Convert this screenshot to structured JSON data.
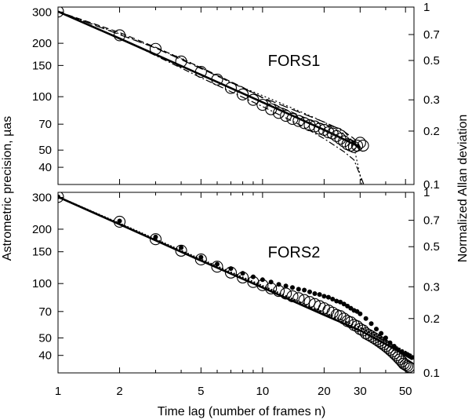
{
  "figure": {
    "xlabel": "Time lag (number of frames n)",
    "ylabel_left": "Astrometric precision, µas",
    "ylabel_right": "Normalized Allan deviation"
  },
  "chart_data": [
    {
      "type": "line",
      "title": "FORS1",
      "xscale": "log",
      "yscale": "log",
      "xlim": [
        1,
        55
      ],
      "ylim": [
        32,
        320
      ],
      "ylim_right": [
        0.1,
        1.0
      ],
      "x_ticks": [
        1,
        2,
        5,
        10,
        20,
        30,
        50
      ],
      "y_ticks": [
        40,
        50,
        70,
        100,
        150,
        200,
        300
      ],
      "y_ticks_right": [
        0.1,
        0.2,
        0.3,
        0.5,
        0.7,
        1
      ],
      "y_tick_labels_right": [
        "0.1",
        "0.2",
        "0.3",
        "0.5",
        "0.7",
        "1"
      ],
      "series": [
        {
          "style": "open-circles",
          "x": [
            1,
            2,
            3,
            4,
            5,
            6,
            7,
            8,
            9,
            10,
            11,
            12,
            13,
            14,
            15,
            16,
            17,
            18,
            19,
            20,
            21,
            22,
            23,
            24,
            25,
            26,
            27,
            28,
            29,
            30,
            31
          ],
          "values": [
            302,
            222,
            186,
            158,
            138,
            125,
            112,
            103,
            96,
            90,
            85,
            81,
            78,
            75,
            73,
            71,
            69,
            68,
            66,
            65,
            63,
            62,
            60,
            58,
            56,
            54,
            53,
            52,
            53,
            55,
            53
          ]
        },
        {
          "style": "solid-thick",
          "x": [
            1,
            2,
            5,
            10,
            20,
            30
          ],
          "values": [
            302,
            213,
            133,
            93,
            65,
            52
          ]
        },
        {
          "style": "dashed",
          "x": [
            1,
            2,
            3,
            5,
            8,
            12,
            18,
            24,
            28,
            31
          ],
          "values": [
            302,
            230,
            190,
            146,
            113,
            88,
            72,
            66,
            58,
            49
          ]
        },
        {
          "style": "dotted",
          "x": [
            1,
            2,
            4,
            7,
            12,
            18,
            24,
            28,
            31
          ],
          "values": [
            302,
            226,
            165,
            120,
            93,
            76,
            65,
            52,
            30
          ]
        },
        {
          "style": "dash-dot",
          "x": [
            1,
            2,
            5,
            10,
            15,
            20,
            25,
            28,
            32
          ],
          "values": [
            302,
            214,
            128,
            88,
            70,
            58,
            49,
            44,
            30
          ]
        },
        {
          "style": "long-dash",
          "x": [
            1,
            3,
            6,
            10,
            15,
            20,
            25,
            30
          ],
          "values": [
            302,
            188,
            131,
            99,
            82,
            72,
            64,
            50
          ]
        }
      ]
    },
    {
      "type": "line",
      "title": "FORS2",
      "xscale": "log",
      "yscale": "log",
      "xlim": [
        1,
        55
      ],
      "ylim": [
        32,
        320
      ],
      "ylim_right": [
        0.1,
        1.0
      ],
      "x_ticks": [
        1,
        2,
        5,
        10,
        20,
        30,
        50
      ],
      "x_tick_labels": [
        "1",
        "2",
        "5",
        "10",
        "20",
        "30",
        "50"
      ],
      "y_ticks": [
        40,
        50,
        70,
        100,
        150,
        200,
        300
      ],
      "y_tick_labels": [
        "40",
        "50",
        "70",
        "100",
        "150",
        "200",
        "300"
      ],
      "y_ticks_right": [
        0.1,
        0.2,
        0.3,
        0.5,
        0.7,
        1
      ],
      "y_tick_labels_right": [
        "0.1",
        "0.2",
        "0.3",
        "0.5",
        "0.7",
        "1"
      ],
      "series": [
        {
          "style": "open-circles",
          "x": [
            1,
            2,
            3,
            4,
            5,
            6,
            7,
            8,
            9,
            10,
            11,
            12,
            13,
            14,
            15,
            16,
            17,
            18,
            19,
            20,
            21,
            22,
            23,
            24,
            25,
            26,
            27,
            28,
            29,
            30,
            31,
            32,
            33,
            34,
            35,
            36,
            37,
            38,
            39,
            40,
            41,
            42,
            43,
            44,
            45,
            46,
            47,
            48,
            49,
            50,
            51,
            52,
            53
          ],
          "values": [
            302,
            220,
            176,
            152,
            136,
            124,
            115,
            108,
            102,
            98,
            94,
            91,
            88,
            85,
            83,
            81,
            79,
            77,
            75,
            73,
            71,
            69,
            67,
            66,
            64,
            62,
            61,
            59,
            58,
            56,
            55,
            53,
            52,
            51,
            50,
            49,
            48,
            47,
            46,
            45,
            44,
            43,
            42,
            41,
            40,
            39,
            38,
            37,
            36,
            35.5,
            35,
            34.5,
            34
          ]
        },
        {
          "style": "filled-dots",
          "x": [
            1,
            2,
            3,
            4,
            5,
            6,
            7,
            8,
            9,
            10,
            11,
            12,
            13,
            14,
            15,
            16,
            17,
            18,
            19,
            20,
            21,
            22,
            23,
            24,
            25,
            26,
            27,
            28,
            29,
            30,
            32,
            34,
            36,
            38,
            40,
            42,
            44,
            46,
            48,
            50,
            52,
            54
          ],
          "values": [
            302,
            222,
            181,
            158,
            140,
            128,
            121,
            114,
            109,
            105,
            102,
            99,
            97,
            95,
            93,
            92,
            90,
            88,
            87,
            85,
            84,
            82,
            80,
            79,
            77,
            75,
            73,
            71,
            70,
            68,
            64,
            60,
            56,
            53,
            50,
            47,
            45,
            43,
            42,
            41,
            40,
            39
          ]
        },
        {
          "style": "solid-thick",
          "x": [
            1,
            2,
            5,
            10,
            20,
            30,
            45,
            54
          ],
          "values": [
            302,
            213,
            134,
            95,
            67,
            55,
            43,
            38
          ]
        },
        {
          "style": "dotted-thick",
          "x": [
            1,
            2,
            5,
            10,
            20,
            30,
            54
          ],
          "values": [
            302,
            215,
            136,
            97,
            69,
            57,
            40
          ]
        }
      ]
    }
  ]
}
